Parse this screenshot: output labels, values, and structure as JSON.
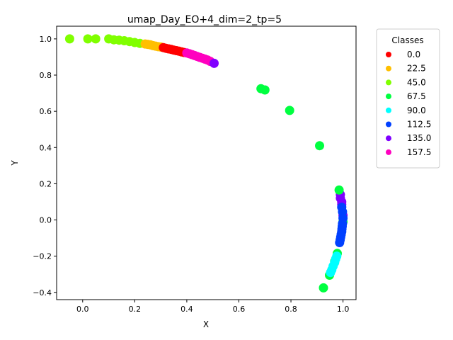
{
  "chart_data": {
    "type": "scatter",
    "title": "umap_Day_EO+4_dim=2_tp=5",
    "xlabel": "X",
    "ylabel": "Y",
    "xlim": [
      -0.1,
      1.05
    ],
    "ylim": [
      -0.44,
      1.07
    ],
    "xticks": [
      0.0,
      0.2,
      0.4,
      0.6,
      0.8,
      1.0
    ],
    "xtick_labels": [
      "0.0",
      "0.2",
      "0.4",
      "0.6",
      "0.8",
      "1.0"
    ],
    "yticks": [
      -0.4,
      -0.2,
      0.0,
      0.2,
      0.4,
      0.6,
      0.8,
      1.0
    ],
    "ytick_labels": [
      "−0.4",
      "−0.2",
      "0.0",
      "0.2",
      "0.4",
      "0.6",
      "0.8",
      "1.0"
    ],
    "grid": false,
    "legend": {
      "title": "Classes",
      "placement": "outside-right",
      "entries": [
        {
          "label": "0.0",
          "color": "#ff0000"
        },
        {
          "label": "22.5",
          "color": "#ffbf00"
        },
        {
          "label": "45.0",
          "color": "#80ff00"
        },
        {
          "label": "67.5",
          "color": "#00ff40"
        },
        {
          "label": "90.0",
          "color": "#00ffff"
        },
        {
          "label": "112.5",
          "color": "#0040ff"
        },
        {
          "label": "135.0",
          "color": "#8000ff"
        },
        {
          "label": "157.5",
          "color": "#ff00bf"
        }
      ]
    },
    "series": [
      {
        "name": "45.0",
        "color": "#80ff00",
        "points": [
          [
            -0.05,
            1.0
          ],
          [
            0.02,
            1.0
          ],
          [
            0.05,
            1.0
          ],
          [
            0.1,
            1.0
          ],
          [
            0.12,
            0.995
          ],
          [
            0.14,
            0.993
          ],
          [
            0.16,
            0.99
          ],
          [
            0.18,
            0.985
          ],
          [
            0.2,
            0.98
          ],
          [
            0.22,
            0.975
          ]
        ]
      },
      {
        "name": "22.5",
        "color": "#ffbf00",
        "points": [
          [
            0.24,
            0.972
          ],
          [
            0.25,
            0.97
          ],
          [
            0.26,
            0.967
          ],
          [
            0.27,
            0.963
          ],
          [
            0.28,
            0.96
          ],
          [
            0.29,
            0.957
          ],
          [
            0.3,
            0.955
          ]
        ]
      },
      {
        "name": "0.0",
        "color": "#ff0000",
        "points": [
          [
            0.31,
            0.952
          ],
          [
            0.32,
            0.948
          ],
          [
            0.33,
            0.945
          ],
          [
            0.34,
            0.942
          ],
          [
            0.35,
            0.938
          ],
          [
            0.36,
            0.935
          ],
          [
            0.37,
            0.932
          ],
          [
            0.38,
            0.928
          ],
          [
            0.39,
            0.925
          ]
        ]
      },
      {
        "name": "157.5",
        "color": "#ff00bf",
        "points": [
          [
            0.4,
            0.922
          ],
          [
            0.41,
            0.918
          ],
          [
            0.42,
            0.913
          ],
          [
            0.43,
            0.908
          ],
          [
            0.44,
            0.903
          ],
          [
            0.45,
            0.898
          ],
          [
            0.46,
            0.893
          ],
          [
            0.47,
            0.888
          ],
          [
            0.48,
            0.883
          ],
          [
            0.49,
            0.876
          ]
        ]
      },
      {
        "name": "135.0",
        "color": "#8000ff",
        "points": [
          [
            0.505,
            0.865
          ],
          [
            0.99,
            0.14
          ],
          [
            0.99,
            0.12
          ],
          [
            0.995,
            0.1
          ],
          [
            0.995,
            0.085
          ],
          [
            1.0,
            0.025
          ]
        ]
      },
      {
        "name": "67.5",
        "color": "#00ff40",
        "points": [
          [
            0.685,
            0.725
          ],
          [
            0.7,
            0.718
          ],
          [
            0.795,
            0.605
          ],
          [
            0.91,
            0.41
          ],
          [
            0.985,
            0.165
          ],
          [
            1.0,
            -0.01
          ],
          [
            0.978,
            -0.185
          ],
          [
            0.968,
            -0.23
          ],
          [
            0.948,
            -0.305
          ],
          [
            0.925,
            -0.375
          ]
        ]
      },
      {
        "name": "112.5",
        "color": "#0040ff",
        "points": [
          [
            0.995,
            0.07
          ],
          [
            0.998,
            0.045
          ],
          [
            1.0,
            0.01
          ],
          [
            0.998,
            -0.02
          ],
          [
            0.997,
            -0.035
          ],
          [
            0.996,
            -0.05
          ],
          [
            0.995,
            -0.065
          ],
          [
            0.993,
            -0.08
          ],
          [
            0.991,
            -0.095
          ],
          [
            0.989,
            -0.11
          ],
          [
            0.987,
            -0.125
          ]
        ]
      },
      {
        "name": "90.0",
        "color": "#00ffff",
        "points": [
          [
            0.976,
            -0.2
          ],
          [
            0.972,
            -0.215
          ],
          [
            0.968,
            -0.235
          ],
          [
            0.962,
            -0.255
          ],
          [
            0.957,
            -0.275
          ],
          [
            0.952,
            -0.29
          ]
        ]
      }
    ]
  }
}
